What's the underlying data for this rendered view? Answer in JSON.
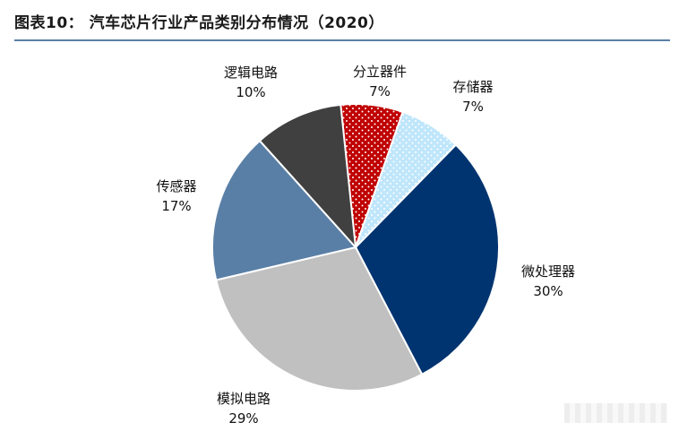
{
  "title": "图表10：  汽车芯片行业产品类别分布情况（2020）",
  "colors": {
    "rule": "#5a7fa6"
  },
  "chart_data": {
    "type": "pie",
    "start_angle_deg": -6,
    "direction": "clockwise",
    "slices": [
      {
        "label": "分立器件",
        "value": 7,
        "value_text": "7%",
        "color": "#c00000",
        "pattern": "white-dots"
      },
      {
        "label": "存储器",
        "value": 7,
        "value_text": "7%",
        "color": "#bfe6fb",
        "pattern": "white-dots"
      },
      {
        "label": "微处理器",
        "value": 30,
        "value_text": "30%",
        "color": "#003470",
        "pattern": "none"
      },
      {
        "label": "模拟电路",
        "value": 29,
        "value_text": "29%",
        "color": "#c0c0c0",
        "pattern": "none"
      },
      {
        "label": "传感器",
        "value": 17,
        "value_text": "17%",
        "color": "#5a7fa6",
        "pattern": "none"
      },
      {
        "label": "逻辑电路",
        "value": 10,
        "value_text": "10%",
        "color": "#404040",
        "pattern": "none"
      }
    ]
  }
}
